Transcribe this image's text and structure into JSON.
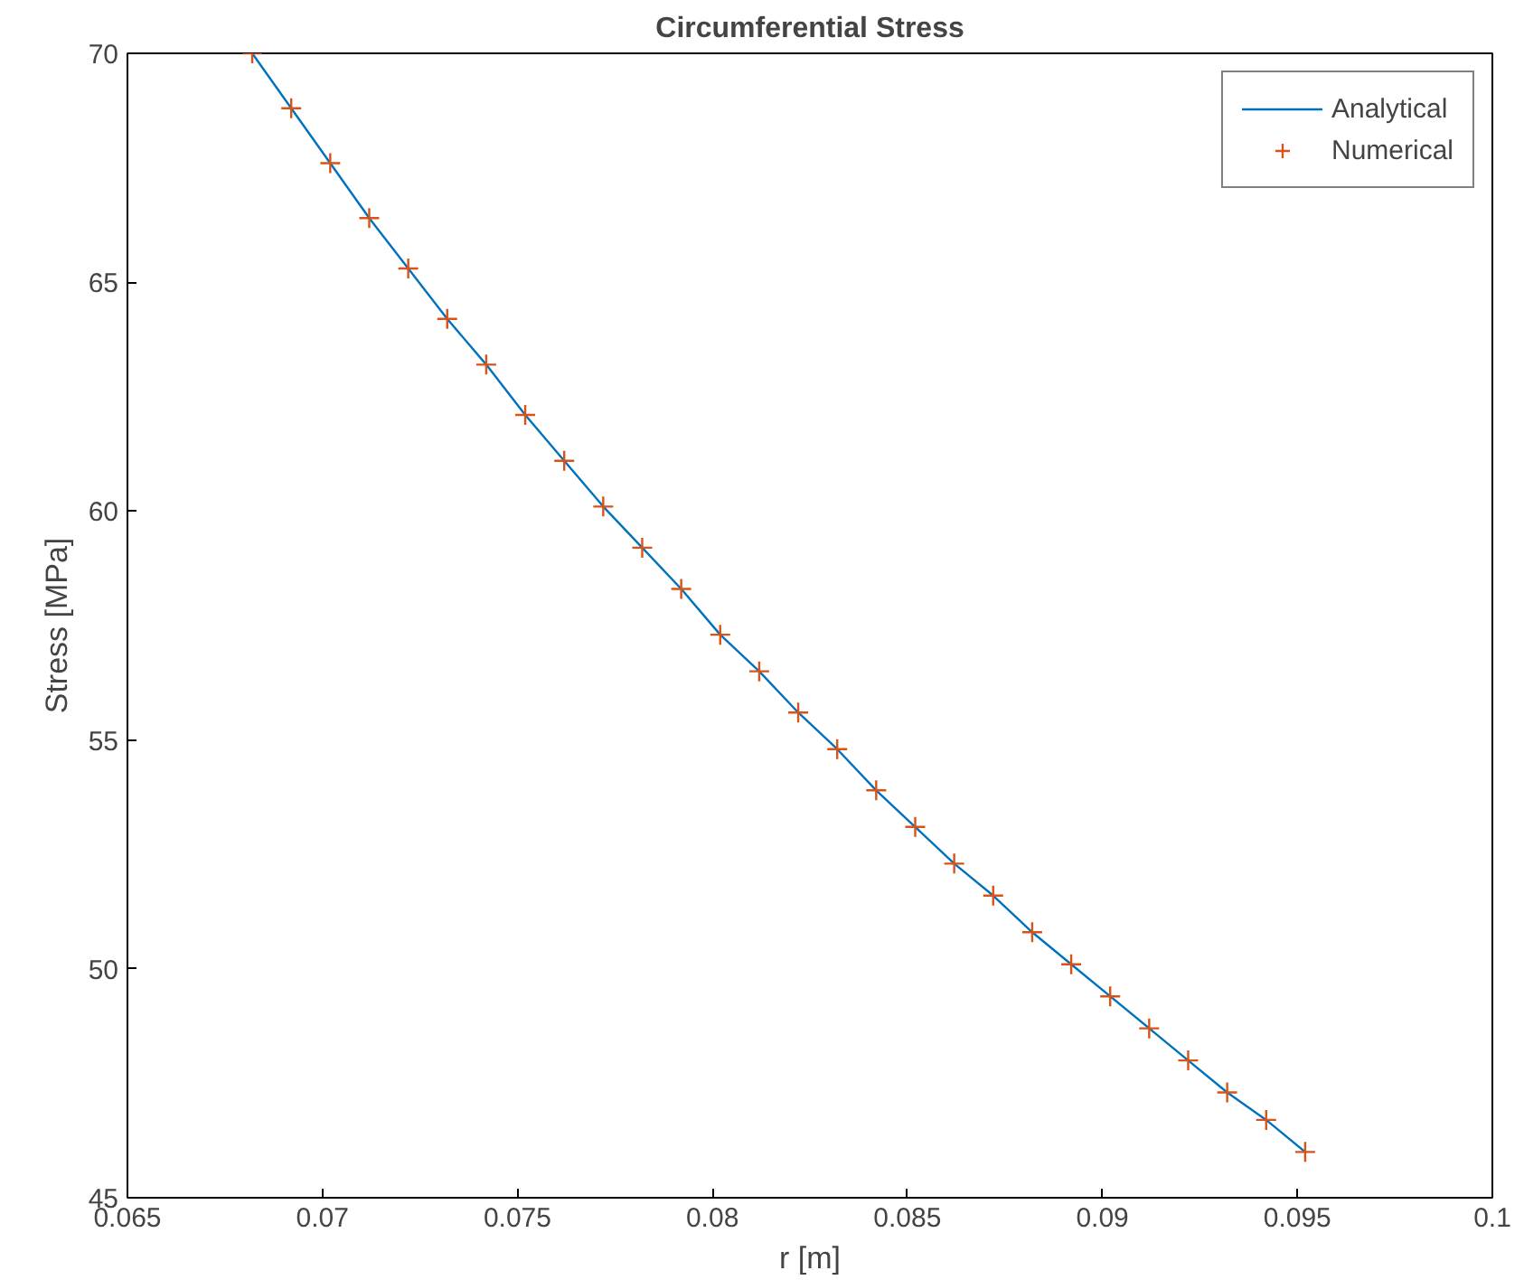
{
  "chart_data": {
    "type": "line",
    "title": "Circumferential Stress",
    "xlabel": "r [m]",
    "ylabel": "Stress [MPa]",
    "x": [
      0.0682,
      0.0692,
      0.0702,
      0.0712,
      0.0722,
      0.0732,
      0.0742,
      0.0752,
      0.0762,
      0.0772,
      0.0782,
      0.0792,
      0.0802,
      0.0812,
      0.0822,
      0.0832,
      0.0842,
      0.0852,
      0.0862,
      0.0872,
      0.0882,
      0.0892,
      0.0902,
      0.0912,
      0.0922,
      0.0932,
      0.0942,
      0.0952
    ],
    "series": [
      {
        "name": "Analytical",
        "color": "#0072bd",
        "marker": "none",
        "values": [
          70.0,
          68.8,
          67.6,
          66.4,
          65.3,
          64.2,
          63.2,
          62.1,
          61.1,
          60.1,
          59.2,
          58.3,
          57.3,
          56.5,
          55.6,
          54.8,
          53.9,
          53.1,
          52.3,
          51.6,
          50.8,
          50.1,
          49.4,
          48.7,
          48.0,
          47.3,
          46.7,
          46.0
        ]
      },
      {
        "name": "Numerical",
        "color": "#d95319",
        "type": "scatter",
        "marker": "cross",
        "values": [
          70.0,
          68.8,
          67.6,
          66.4,
          65.3,
          64.2,
          63.2,
          62.1,
          61.1,
          60.1,
          59.2,
          58.3,
          57.3,
          56.5,
          55.6,
          54.8,
          53.9,
          53.1,
          52.3,
          51.6,
          50.8,
          50.1,
          49.4,
          48.7,
          48.0,
          47.3,
          46.7,
          46.0
        ]
      }
    ],
    "xlim": [
      0.065,
      0.1
    ],
    "xticks": [
      0.065,
      0.07,
      0.075,
      0.08,
      0.085,
      0.09,
      0.095,
      0.1
    ],
    "ylim": [
      45,
      70
    ],
    "yticks": [
      45,
      50,
      55,
      60,
      65,
      70
    ],
    "grid": false,
    "legend": "top right"
  }
}
